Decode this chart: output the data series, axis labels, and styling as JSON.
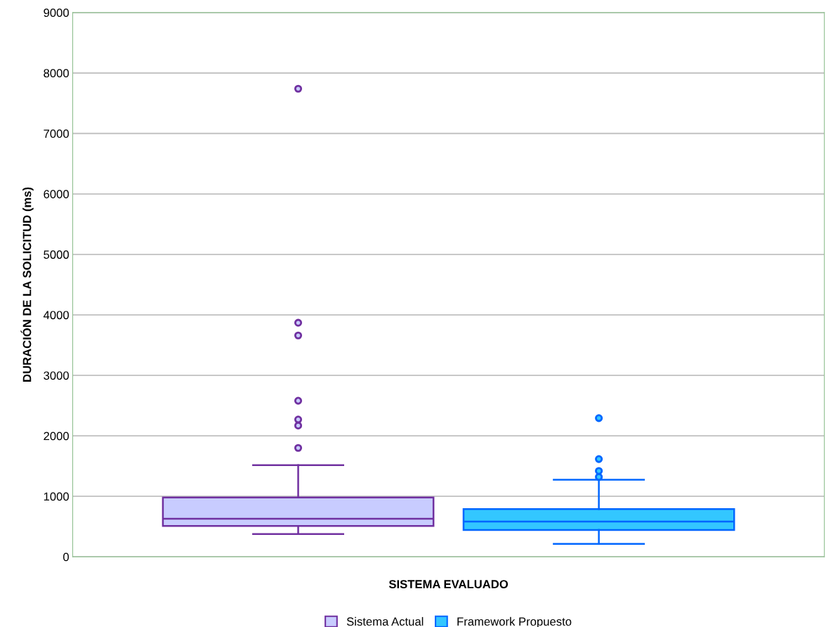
{
  "chart_data": {
    "type": "box",
    "xlabel": "SISTEMA EVALUADO",
    "ylabel": "DURACIÓN DE LA SOLICITUD (ms)",
    "categories": [
      null
    ],
    "series": [
      {
        "name": "Sistema Actual",
        "color": "#7030a0",
        "colors": [
          "#c8ccff"
        ],
        "boxes": [
          {
            "low": 377,
            "q1": 509,
            "median": 629,
            "q3": 981,
            "high": 1515,
            "outliers": [
              1800,
              2170,
              2270,
              2580,
              3660,
              3870,
              7740
            ]
          }
        ]
      },
      {
        "name": "Framework Propuesto",
        "color": "#0066ff",
        "colors": [
          "#33c7ff"
        ],
        "boxes": [
          {
            "low": 212,
            "q1": 444,
            "median": 581,
            "q3": 790,
            "high": 1274,
            "outliers": [
              1320,
              1420,
              1616,
              2293
            ]
          }
        ]
      }
    ],
    "ylim": [
      0,
      9000
    ],
    "yticks": [
      0,
      1000,
      2000,
      3000,
      4000,
      5000,
      6000,
      7000,
      8000,
      9000
    ],
    "grid": "y",
    "legend": "bottom",
    "marker": "circle"
  }
}
